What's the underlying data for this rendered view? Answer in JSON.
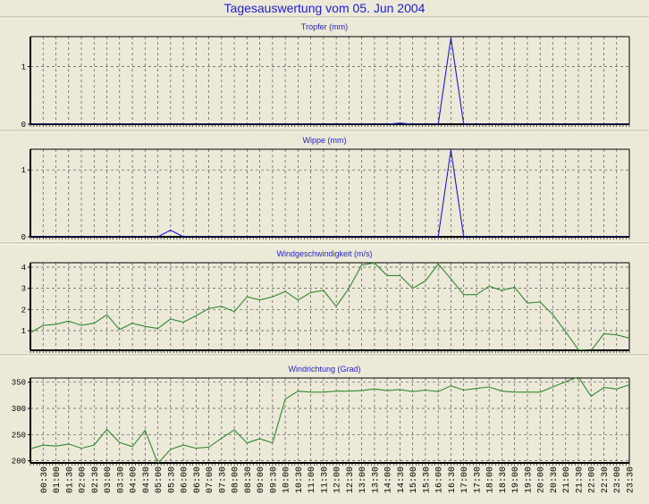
{
  "title": "Tagesauswertung vom 05. Jun 2004",
  "colors": {
    "background": "#ECE9D8",
    "rain": "#1c1ccc",
    "wind": "#2e8b2e",
    "title": "#1f1fcf",
    "grid": "#555555"
  },
  "x_tick_labels": [
    "00:30",
    "01:00",
    "01:30",
    "02:00",
    "02:30",
    "03:00",
    "03:30",
    "04:00",
    "04:30",
    "05:00",
    "05:30",
    "06:00",
    "06:30",
    "07:00",
    "07:30",
    "08:00",
    "08:30",
    "09:00",
    "09:30",
    "10:00",
    "10:30",
    "11:00",
    "11:30",
    "12:00",
    "12:30",
    "13:00",
    "13:30",
    "14:00",
    "14:30",
    "15:00",
    "15:30",
    "16:00",
    "16:30",
    "17:00",
    "17:30",
    "18:00",
    "18:30",
    "19:00",
    "19:30",
    "20:00",
    "20:30",
    "21:00",
    "21:30",
    "22:00",
    "22:30",
    "23:00",
    "23:30"
  ],
  "chart_data": [
    {
      "type": "line",
      "title": "Tropfer (mm)",
      "xlabel": "",
      "ylabel": "",
      "x_start_hours": 0,
      "x_step_hours": 0.5,
      "xlim": [
        0,
        23.5
      ],
      "ylim": [
        0,
        1.52
      ],
      "y_ticks": [
        0,
        1
      ],
      "y_tick_labels": [
        "0",
        "1"
      ],
      "grid": true,
      "color_key": "rain",
      "values": [
        0,
        0,
        0,
        0,
        0,
        0,
        0,
        0,
        0,
        0,
        0,
        0,
        0,
        0,
        0,
        0,
        0,
        0,
        0,
        0,
        0,
        0,
        0,
        0,
        0,
        0,
        0,
        0,
        0,
        0.02,
        0,
        0,
        0,
        1.5,
        0,
        0,
        0,
        0,
        0,
        0,
        0,
        0,
        0,
        0,
        0,
        0,
        0,
        0
      ]
    },
    {
      "type": "line",
      "title": "Wippe (mm)",
      "xlabel": "",
      "ylabel": "",
      "x_start_hours": 0,
      "x_step_hours": 0.5,
      "xlim": [
        0,
        23.5
      ],
      "ylim": [
        0,
        1.31
      ],
      "y_ticks": [
        0,
        1
      ],
      "y_tick_labels": [
        "0",
        "1"
      ],
      "grid": true,
      "color_key": "rain",
      "values": [
        0,
        0,
        0,
        0,
        0,
        0,
        0,
        0,
        0,
        0,
        0,
        0.1,
        0,
        0,
        0,
        0,
        0,
        0,
        0,
        0,
        0,
        0,
        0,
        0,
        0,
        0,
        0,
        0,
        0,
        0,
        0,
        0,
        0,
        1.3,
        0,
        0,
        0,
        0,
        0,
        0,
        0,
        0,
        0,
        0,
        0,
        0,
        0,
        0
      ]
    },
    {
      "type": "line",
      "title": "Windgeschwindigkeit (m/s)",
      "xlabel": "",
      "ylabel": "",
      "x_start_hours": 0,
      "x_step_hours": 0.5,
      "xlim": [
        0,
        23.5
      ],
      "ylim": [
        0.07,
        4.21
      ],
      "y_ticks": [
        1,
        2,
        3,
        4
      ],
      "y_tick_labels": [
        "1",
        "2",
        "3",
        "4"
      ],
      "grid": true,
      "color_key": "wind",
      "values": [
        0.9,
        1.25,
        1.3,
        1.45,
        1.25,
        1.35,
        1.75,
        1.05,
        1.35,
        1.2,
        1.1,
        1.55,
        1.4,
        1.7,
        2.05,
        2.15,
        1.9,
        2.6,
        2.45,
        2.6,
        2.85,
        2.45,
        2.8,
        2.9,
        2.15,
        3.0,
        4.1,
        4.2,
        3.6,
        3.6,
        3.0,
        3.35,
        4.15,
        3.45,
        2.7,
        2.7,
        3.1,
        2.9,
        3.05,
        2.3,
        2.35,
        1.75,
        0.95,
        0.1,
        0.05,
        0.85,
        0.8,
        0.65
      ]
    },
    {
      "type": "line",
      "title": "Windrichtung (Grad)",
      "xlabel": "",
      "ylabel": "",
      "x_start_hours": 0,
      "x_step_hours": 0.5,
      "xlim": [
        0,
        23.5
      ],
      "ylim": [
        196,
        358
      ],
      "y_ticks": [
        200,
        250,
        300,
        350
      ],
      "y_tick_labels": [
        "200",
        "250",
        "300",
        "350"
      ],
      "grid": true,
      "color_key": "wind",
      "values": [
        223,
        230,
        228,
        232,
        224,
        230,
        260,
        235,
        227,
        258,
        195,
        222,
        230,
        224,
        226,
        243,
        259,
        234,
        242,
        234,
        318,
        333,
        331,
        331,
        333,
        333,
        334,
        337,
        334,
        336,
        332,
        335,
        332,
        343,
        335,
        338,
        341,
        333,
        331,
        331,
        331,
        341,
        351,
        360,
        323,
        340,
        337,
        345
      ]
    }
  ]
}
